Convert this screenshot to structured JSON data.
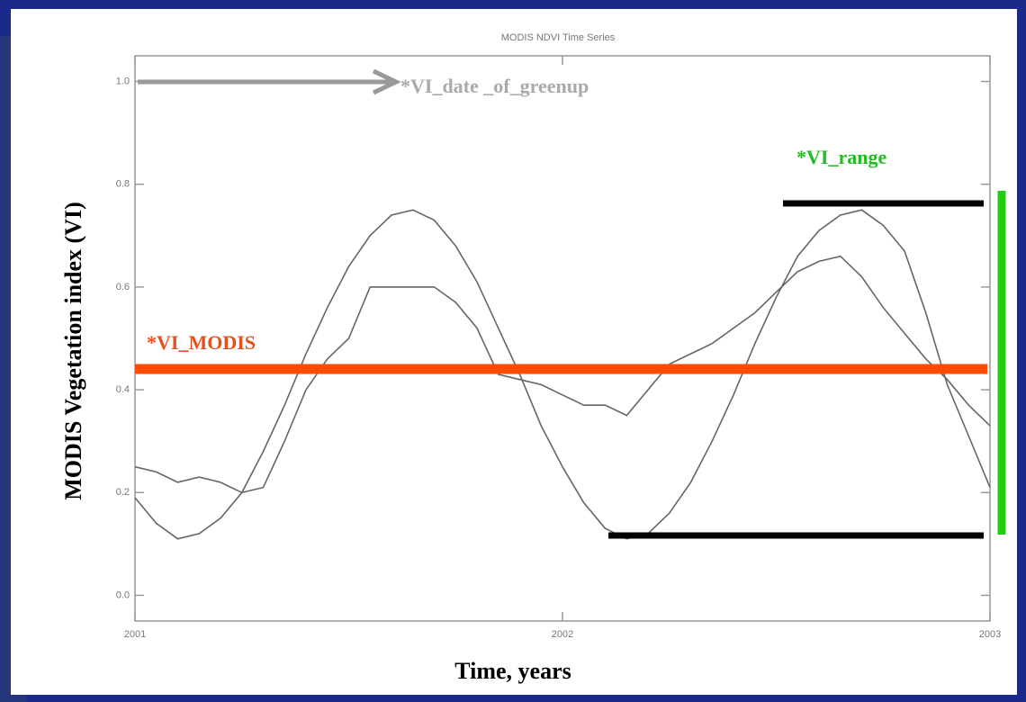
{
  "chart_data": {
    "type": "line",
    "title": "MODIS NDVI Time Series",
    "x_label": "Time, years",
    "y_label": "MODIS Vegetation index (VI)",
    "annotations": [
      "*VI_date _of_greenup",
      "*VI_range",
      "*VI_MODIS"
    ],
    "x": [
      2001.0,
      2001.05,
      2001.1,
      2001.15,
      2001.2,
      2001.25,
      2001.3,
      2001.35,
      2001.4,
      2001.45,
      2001.5,
      2001.55,
      2001.6,
      2001.65,
      2001.7,
      2001.75,
      2001.8,
      2001.85,
      2001.9,
      2001.95,
      2002.0,
      2002.05,
      2002.1,
      2002.15,
      2002.2,
      2002.25,
      2002.3,
      2002.35,
      2002.4,
      2002.45,
      2002.5,
      2002.55,
      2002.6,
      2002.65,
      2002.7,
      2002.75,
      2002.8,
      2002.85,
      2002.9,
      2002.95,
      2003.0
    ],
    "series": [
      {
        "color": "#666666",
        "values": [
          0.19,
          0.14,
          0.11,
          0.12,
          0.15,
          0.2,
          0.28,
          0.37,
          0.47,
          0.56,
          0.64,
          0.7,
          0.74,
          0.75,
          0.73,
          0.68,
          0.61,
          0.52,
          0.43,
          0.33,
          0.25,
          0.18,
          0.13,
          0.11,
          0.12,
          0.16,
          0.22,
          0.3,
          0.39,
          0.49,
          0.58,
          0.66,
          0.71,
          0.74,
          0.75,
          0.72,
          0.67,
          0.55,
          0.41,
          0.31,
          0.21
        ]
      },
      {
        "color": "#666666",
        "values": [
          0.25,
          0.24,
          0.22,
          0.23,
          0.22,
          0.2,
          0.21,
          0.3,
          0.4,
          0.46,
          0.5,
          0.6,
          0.6,
          0.6,
          0.6,
          0.57,
          0.52,
          0.43,
          0.42,
          0.41,
          0.39,
          0.37,
          0.37,
          0.35,
          0.4,
          0.45,
          0.47,
          0.49,
          0.52,
          0.55,
          0.59,
          0.63,
          0.65,
          0.66,
          0.62,
          0.56,
          0.51,
          0.46,
          0.42,
          0.37,
          0.33
        ]
      }
    ],
    "xlim": [
      2001,
      2003
    ],
    "ylim": [
      -0.05,
      1.05
    ],
    "xticks": [
      2001,
      2002,
      2003
    ],
    "yticks": [
      {
        "value": 0,
        "label": "0.0"
      },
      0.2,
      0.4,
      0.6,
      0.8,
      {
        "value": 1,
        "label": "1.0"
      }
    ],
    "grid": false
  }
}
